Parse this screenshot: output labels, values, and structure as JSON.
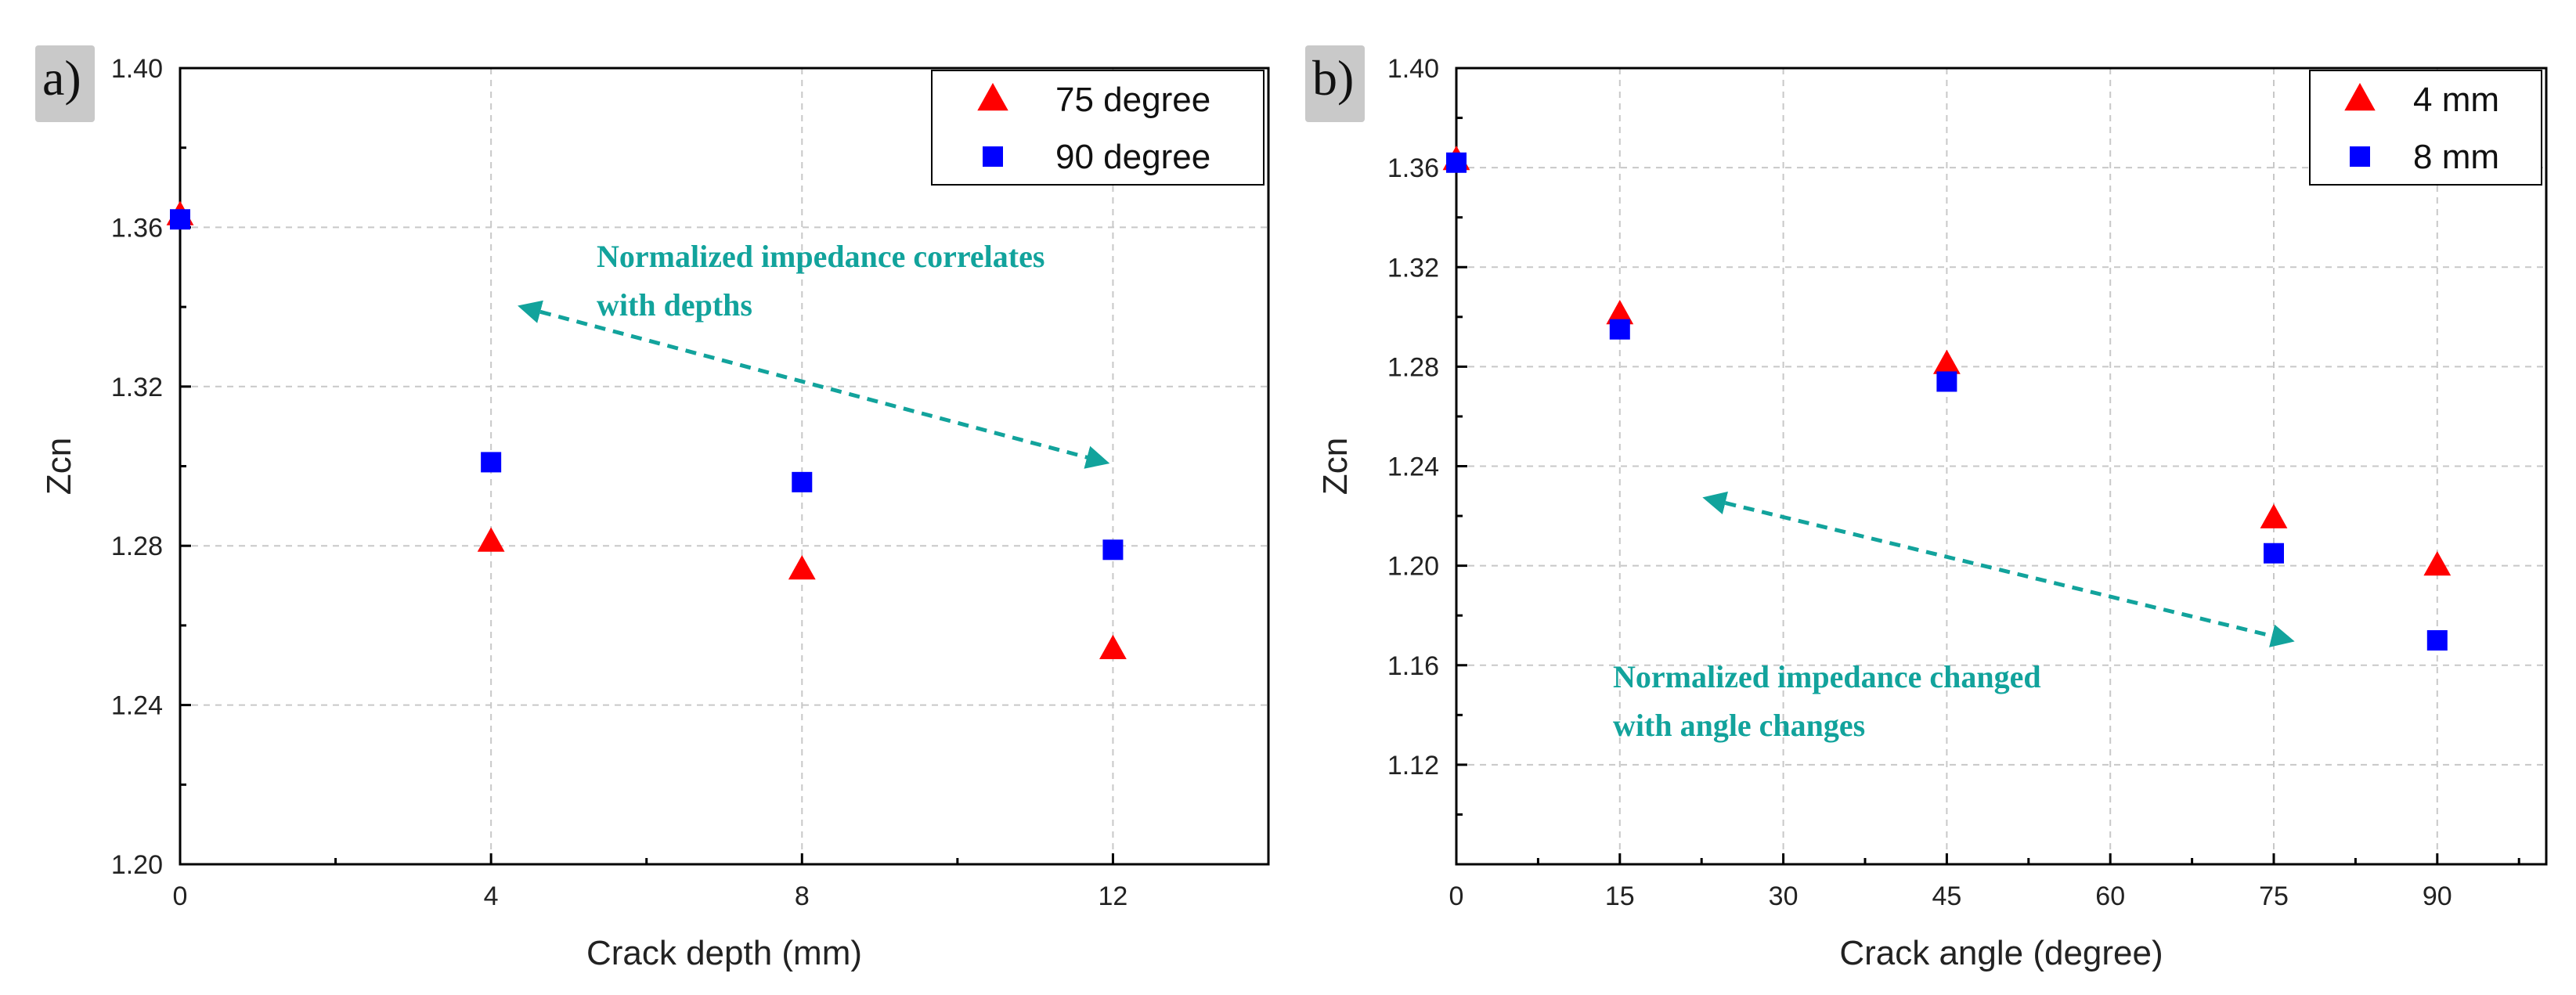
{
  "chart_data": [
    {
      "type": "scatter",
      "panel_label": "a)",
      "title": "",
      "xlabel": "Crack depth (mm)",
      "ylabel": "Zcn",
      "xlim": [
        0,
        14
      ],
      "ylim": [
        1.2,
        1.4
      ],
      "xticks": [
        0,
        4,
        8,
        12
      ],
      "xtick_labels": [
        "0",
        "4",
        "8",
        "12"
      ],
      "yticks": [
        1.2,
        1.24,
        1.28,
        1.32,
        1.36,
        1.4
      ],
      "ytick_labels": [
        "1.20",
        "1.24",
        "1.28",
        "1.32",
        "1.36",
        "1.40"
      ],
      "grid": true,
      "legend_position": "top-right",
      "series": [
        {
          "name": "75 degree",
          "marker": "triangle",
          "color": "#ff0000",
          "x": [
            0,
            4,
            8,
            12
          ],
          "y": [
            1.363,
            1.281,
            1.274,
            1.254
          ]
        },
        {
          "name": "90 degree",
          "marker": "square",
          "color": "#0000ff",
          "x": [
            0,
            4,
            8,
            12
          ],
          "y": [
            1.362,
            1.301,
            1.296,
            1.279
          ]
        }
      ],
      "annotation": {
        "lines": [
          "Normalized impedance correlates",
          "with depths"
        ],
        "arrow_from": [
          4.4,
          1.34
        ],
        "arrow_to": [
          11.9,
          1.301
        ]
      }
    },
    {
      "type": "scatter",
      "panel_label": "b)",
      "title": "",
      "xlabel": "Crack angle (degree)",
      "ylabel": "Zcn",
      "xlim": [
        0,
        100
      ],
      "ylim": [
        1.08,
        1.4
      ],
      "xticks": [
        0,
        15,
        30,
        45,
        60,
        75,
        90
      ],
      "xtick_labels": [
        "0",
        "15",
        "30",
        "45",
        "60",
        "75",
        "90"
      ],
      "yticks": [
        1.12,
        1.16,
        1.2,
        1.24,
        1.28,
        1.32,
        1.36,
        1.4
      ],
      "ytick_labels": [
        "1.12",
        "1.16",
        "1.20",
        "1.24",
        "1.28",
        "1.32",
        "1.36",
        "1.40"
      ],
      "grid": true,
      "legend_position": "top-right",
      "series": [
        {
          "name": "4 mm",
          "marker": "triangle",
          "color": "#ff0000",
          "x": [
            0,
            15,
            45,
            75,
            90
          ],
          "y": [
            1.363,
            1.301,
            1.281,
            1.219,
            1.2
          ]
        },
        {
          "name": "8 mm",
          "marker": "square",
          "color": "#0000ff",
          "x": [
            0,
            15,
            45,
            75,
            90
          ],
          "y": [
            1.362,
            1.295,
            1.274,
            1.205,
            1.17
          ]
        }
      ],
      "annotation": {
        "lines": [
          "Normalized impedance changed",
          "with angle changes"
        ],
        "arrow_from": [
          23,
          1.227
        ],
        "arrow_to": [
          76.5,
          1.17
        ]
      }
    }
  ]
}
